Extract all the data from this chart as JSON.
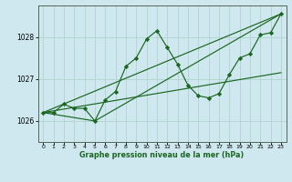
{
  "title": "Graphe pression niveau de la mer (hPa)",
  "bg_color": "#cfe8ef",
  "grid_color": "#b0d4cc",
  "line_color": "#1a6620",
  "xlim": [
    -0.5,
    23.5
  ],
  "ylim": [
    1025.5,
    1028.75
  ],
  "yticks": [
    1026,
    1027,
    1028
  ],
  "xticks": [
    0,
    1,
    2,
    3,
    4,
    5,
    6,
    7,
    8,
    9,
    10,
    11,
    12,
    13,
    14,
    15,
    16,
    17,
    18,
    19,
    20,
    21,
    22,
    23
  ],
  "series1_x": [
    0,
    1,
    2,
    3,
    4,
    5,
    6,
    7,
    8,
    9,
    10,
    11,
    12,
    13,
    14,
    15,
    16,
    17,
    18,
    19,
    20,
    21,
    22,
    23
  ],
  "series1_y": [
    1026.2,
    1026.2,
    1026.4,
    1026.3,
    1026.3,
    1026.0,
    1026.5,
    1026.7,
    1027.3,
    1027.5,
    1027.95,
    1028.15,
    1027.75,
    1027.35,
    1026.85,
    1026.6,
    1026.55,
    1026.65,
    1027.1,
    1027.5,
    1027.6,
    1028.05,
    1028.1,
    1028.55
  ],
  "trend1_x": [
    0,
    23
  ],
  "trend1_y": [
    1026.2,
    1028.55
  ],
  "trend2_x": [
    0,
    23
  ],
  "trend2_y": [
    1026.2,
    1027.15
  ],
  "trend3_x": [
    0,
    5,
    23
  ],
  "trend3_y": [
    1026.2,
    1026.0,
    1028.55
  ]
}
